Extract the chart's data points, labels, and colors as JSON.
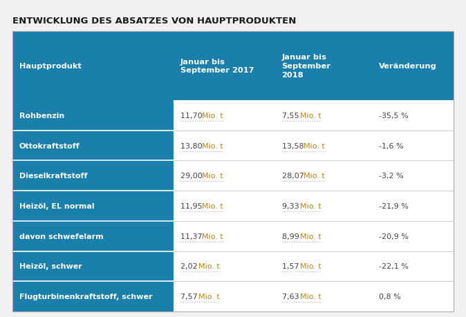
{
  "title": "ENTWICKLUNG DES ABSATZES VON HAUPTPRODUKTEN",
  "header_bg": "#1a7faa",
  "row_bg_dark": "#1a7faa",
  "header_text_color": "#ffffff",
  "col1_text_color": "#ffffff",
  "number_color": "#444444",
  "unit_color": "#b8860b",
  "change_color": "#444444",
  "columns": [
    "Hauptprodukt",
    "Januar bis\nSeptember 2017",
    "Januar bis\nSeptember\n2018",
    "Veränderung"
  ],
  "rows": [
    [
      "Rohbenzin",
      "11,70",
      "7,55",
      "-35,5 %"
    ],
    [
      "Ottokraftstoff",
      "13,80",
      "13,58",
      "-1,6 %"
    ],
    [
      "Dieselkraftstoff",
      "29,00",
      "28,07",
      "-3,2 %"
    ],
    [
      "Heizöl, EL normal",
      "11,95",
      "9,33",
      "-21,9 %"
    ],
    [
      "davon schwefelarm",
      "11,37",
      "8,99",
      "-20,9 %"
    ],
    [
      "Heizöl, schwer",
      "2,02",
      "1,57",
      "-22,1 %"
    ],
    [
      "Flugturbinenkraftstoff, schwer",
      "7,57",
      "7,63",
      "0,8 %"
    ]
  ],
  "background_color": "#f0f0f0",
  "table_bg": "#ffffff",
  "separator_color": "#bbbbbb",
  "title_color": "#1a1a1a"
}
